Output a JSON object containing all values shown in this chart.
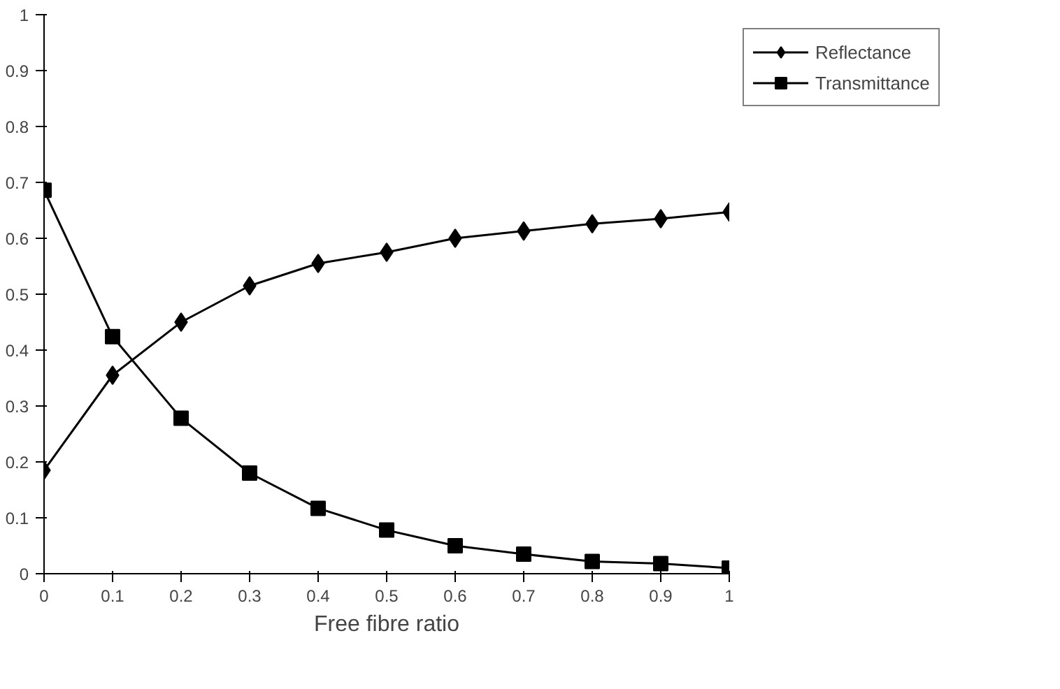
{
  "chart_data": {
    "type": "line",
    "xlabel": "Free fibre ratio",
    "x": [
      0,
      0.1,
      0.2,
      0.3,
      0.4,
      0.5,
      0.6,
      0.7,
      0.8,
      0.9,
      1
    ],
    "series": [
      {
        "name": "Reflectance",
        "color": "#000000",
        "marker": "diamond",
        "values": [
          0.185,
          0.355,
          0.45,
          0.515,
          0.555,
          0.575,
          0.6,
          0.613,
          0.626,
          0.635,
          0.647
        ]
      },
      {
        "name": "Transmittance",
        "color": "#000000",
        "marker": "square",
        "values": [
          0.686,
          0.424,
          0.278,
          0.18,
          0.117,
          0.078,
          0.05,
          0.035,
          0.022,
          0.018,
          0.01
        ]
      }
    ],
    "xlim": [
      0,
      1
    ],
    "xticks": [
      0,
      0.1,
      0.2,
      0.3,
      0.4,
      0.5,
      0.6,
      0.7,
      0.8,
      0.9,
      1
    ],
    "ylim": [
      0,
      1
    ],
    "yticks": [
      0,
      0.1,
      0.2,
      0.3,
      0.4,
      0.5,
      0.6,
      0.7,
      0.8,
      0.9,
      1
    ],
    "grid": false,
    "legend": "right",
    "line_style": "solid"
  }
}
